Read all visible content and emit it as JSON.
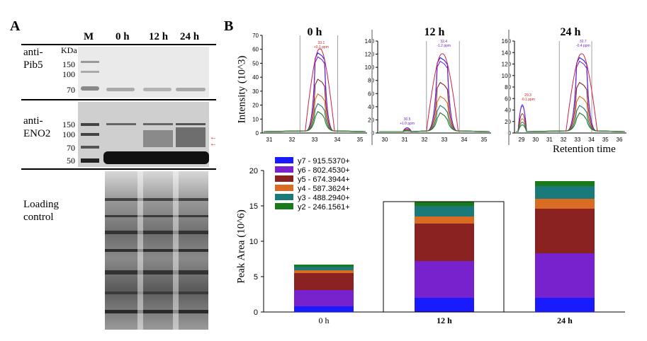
{
  "panel_a": {
    "letter": "A",
    "lanes": [
      "M",
      "0 h",
      "12 h",
      "24 h"
    ],
    "kda_label": "KDa",
    "blot1": {
      "label_line1": "anti-",
      "label_line2": "Pib5",
      "markers": [
        "150",
        "100",
        "70"
      ]
    },
    "blot2": {
      "label_line1": "anti-",
      "label_line2": "ENO2",
      "markers": [
        "150",
        "100",
        "70",
        "50"
      ]
    },
    "blot3": {
      "label_line1": "Loading",
      "label_line2": "control"
    }
  },
  "panel_b": {
    "letter": "B",
    "chromatograms": [
      {
        "title": "0 h",
        "yticks": [
          "0",
          "10",
          "20",
          "30",
          "40",
          "50",
          "60",
          "70"
        ],
        "xticks": [
          "31",
          "32",
          "33",
          "34",
          "35"
        ],
        "annotation": "33.1\n+0.1 ppm"
      },
      {
        "title": "12 h",
        "yticks": [
          "0",
          "20",
          "40",
          "60",
          "80",
          "100",
          "120",
          "140"
        ],
        "xticks": [
          "30",
          "31",
          "32",
          "33",
          "34",
          "35"
        ],
        "annotation": "32.4\n-1.2 ppm"
      },
      {
        "title": "24 h",
        "yticks": [
          "0",
          "20",
          "40",
          "60",
          "80",
          "100",
          "120",
          "140",
          "160"
        ],
        "xticks": [
          "29",
          "30",
          "31",
          "32",
          "33",
          "34",
          "35",
          "36"
        ],
        "annotation": "32.7\n-0.4 ppm"
      }
    ],
    "chrom_ylabel": "Intensity (10^3)",
    "chrom_xlabel": "Retention time",
    "side_annotation_12h": "30.5\n+1.0 ppm",
    "side_annotation_24h": "29.3\n-0.1 ppm"
  },
  "chart_data": {
    "type": "bar",
    "stacked": true,
    "categories": [
      "0 h",
      "12 h",
      "24 h"
    ],
    "ylabel": "Peak Area (10^6)",
    "ylim": [
      0,
      20
    ],
    "yticks": [
      0,
      5,
      10,
      15,
      20
    ],
    "series": [
      {
        "name": "y7 - 915.5370+",
        "color": "#1a1aff",
        "values": [
          0.8,
          2.0,
          2.0
        ]
      },
      {
        "name": "y6 - 802.4530+",
        "color": "#7722cc",
        "values": [
          2.3,
          5.2,
          6.3
        ]
      },
      {
        "name": "y5 - 674.3944+",
        "color": "#8b2222",
        "values": [
          2.4,
          5.3,
          6.3
        ]
      },
      {
        "name": "y4 - 587.3624+",
        "color": "#d96b22",
        "values": [
          0.4,
          1.0,
          1.4
        ]
      },
      {
        "name": "y3 - 488.2940+",
        "color": "#1a7a7a",
        "values": [
          0.5,
          1.5,
          1.8
        ]
      },
      {
        "name": "y2 - 246.1561+",
        "color": "#1a7a1a",
        "values": [
          0.3,
          0.6,
          0.7
        ]
      }
    ]
  }
}
